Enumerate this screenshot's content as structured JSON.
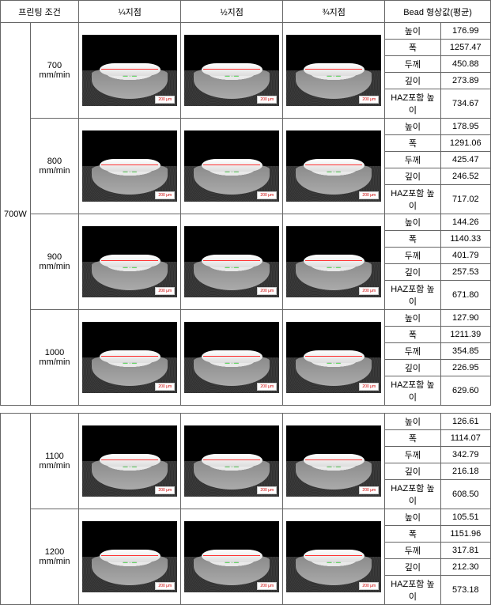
{
  "header": {
    "cond": "프린팅 조건",
    "q1": "¼지점",
    "q2": "½지점",
    "q3": "¾지점",
    "bead": "Bead 형상값(평균)"
  },
  "labels": {
    "height": "높이",
    "width": "폭",
    "thick": "두께",
    "depth": "깊이",
    "haz": "HAZ포함 높이"
  },
  "power": "700W",
  "sections": [
    {
      "speed": "700 mm/min",
      "vals": {
        "height": "176.99",
        "width": "1257.47",
        "thick": "450.88",
        "depth": "273.89",
        "haz": "734.67"
      }
    },
    {
      "speed": "800 mm/min",
      "vals": {
        "height": "178.95",
        "width": "1291.06",
        "thick": "425.47",
        "depth": "246.52",
        "haz": "717.02"
      }
    },
    {
      "speed": "900 mm/min",
      "vals": {
        "height": "144.26",
        "width": "1140.33",
        "thick": "401.79",
        "depth": "257.53",
        "haz": "671.80"
      }
    },
    {
      "speed": "1000 mm/min",
      "vals": {
        "height": "127.90",
        "width": "1211.39",
        "thick": "354.85",
        "depth": "226.95",
        "haz": "629.60"
      }
    },
    {
      "speed": "1100 mm/min",
      "vals": {
        "height": "126.61",
        "width": "1114.07",
        "thick": "342.79",
        "depth": "216.18",
        "haz": "608.50"
      }
    },
    {
      "speed": "1200 mm/min",
      "vals": {
        "height": "105.51",
        "width": "1151.96",
        "thick": "317.81",
        "depth": "212.30",
        "haz": "573.18"
      }
    }
  ],
  "scale_label": "200 μm"
}
